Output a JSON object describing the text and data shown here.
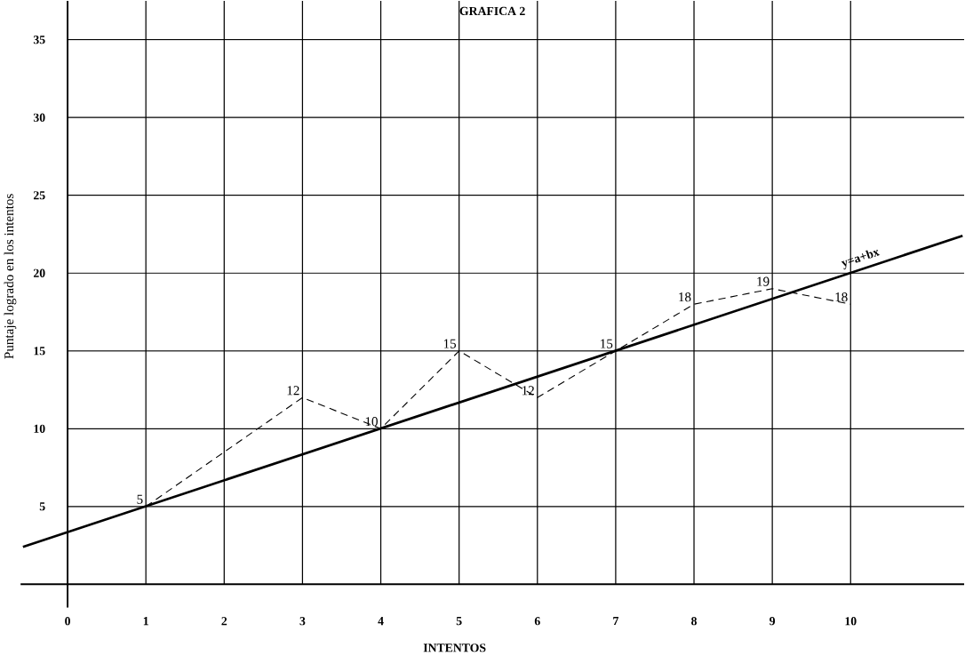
{
  "chart_data": {
    "type": "line",
    "title": "GRAFICA 2",
    "xlabel": "INTENTOS",
    "ylabel": "Puntaje logrado en los intentos",
    "xlim": [
      -0.6,
      11.45
    ],
    "ylim": [
      -1.5,
      37.5
    ],
    "xticks": [
      0,
      1,
      2,
      3,
      4,
      5,
      6,
      7,
      8,
      9,
      10
    ],
    "yticks": [
      5,
      10,
      15,
      20,
      25,
      30,
      35
    ],
    "grid": true,
    "series": [
      {
        "color": "#000000",
        "line_style": "dashed",
        "x": [
          1,
          3,
          4,
          5,
          6,
          7,
          8,
          9,
          10
        ],
        "values": [
          5,
          12,
          10,
          15,
          12,
          15,
          18,
          19,
          18
        ],
        "value_labels": [
          "5",
          "12",
          "10",
          "15",
          "12",
          "15",
          "18",
          "19",
          "18"
        ]
      },
      {
        "name": "y=a+bx",
        "color": "#000000",
        "line_style": "solid",
        "x": [
          -0.57,
          11.43
        ],
        "values": [
          2.4,
          22.4
        ]
      }
    ]
  }
}
